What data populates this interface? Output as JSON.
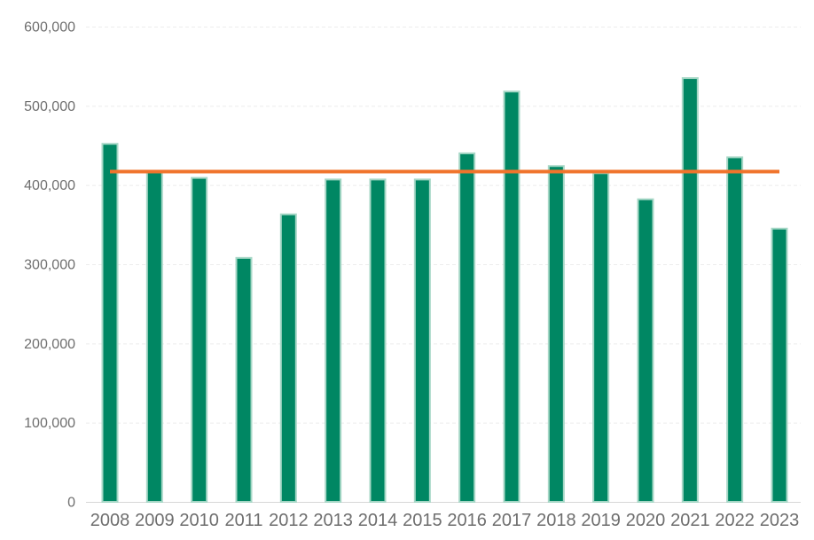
{
  "chart_data": {
    "type": "bar",
    "title": "",
    "categories": [
      "2008",
      "2009",
      "2010",
      "2011",
      "2012",
      "2013",
      "2014",
      "2015",
      "2016",
      "2017",
      "2018",
      "2019",
      "2020",
      "2021",
      "2022",
      "2023"
    ],
    "values": [
      452000,
      418000,
      409000,
      308000,
      363000,
      407000,
      407000,
      407000,
      440000,
      518000,
      424000,
      415000,
      382000,
      535000,
      435000,
      345000
    ],
    "reference_line": {
      "value": 417000,
      "color": "#f0742c",
      "description": "average-line"
    },
    "xlabel": "",
    "ylabel": "",
    "ylim": [
      0,
      600000
    ],
    "y_ticks": [
      {
        "value": 600000,
        "label": "600,000"
      },
      {
        "value": 500000,
        "label": "500,000"
      },
      {
        "value": 400000,
        "label": "400,000"
      },
      {
        "value": 300000,
        "label": "300,000"
      },
      {
        "value": 200000,
        "label": "200,000"
      },
      {
        "value": 100000,
        "label": "100,000"
      },
      {
        "value": 0,
        "label": "0"
      }
    ],
    "grid": "horizontal-dashed",
    "legend": "none",
    "colors": {
      "bar_fill": "#008763",
      "bar_edge": "#a6d7c6",
      "reference_line": "#f0742c",
      "gridline": "#ececec",
      "axis_line": "#d7d7d7",
      "tick_label": "#6e6e6e",
      "background": "#ffffff"
    }
  }
}
